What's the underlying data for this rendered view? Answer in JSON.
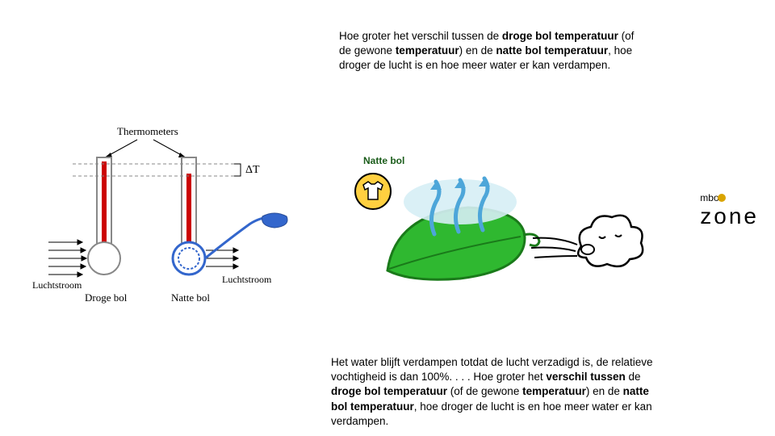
{
  "top_paragraph": {
    "parts": [
      {
        "t": "Hoe groter het verschil tussen de ",
        "b": false
      },
      {
        "t": "droge bol temperatuur",
        "b": true
      },
      {
        "t": " (of de gewone ",
        "b": false
      },
      {
        "t": "temperatuur",
        "b": true
      },
      {
        "t": ") en de ",
        "b": false
      },
      {
        "t": "natte bol temperatuur",
        "b": true
      },
      {
        "t": ", hoe droger de lucht is en hoe meer water er kan verdampen.",
        "b": false
      }
    ]
  },
  "bottom_paragraph": {
    "parts": [
      {
        "t": "Het water blijft verdampen totdat de lucht verzadigd is, de relatieve vochtigheid is dan 100%. . . . Hoe groter het ",
        "b": false
      },
      {
        "t": "verschil tussen",
        "b": true
      },
      {
        "t": " de ",
        "b": false
      },
      {
        "t": "droge bol temperatuur",
        "b": true
      },
      {
        "t": " (of de gewone ",
        "b": false
      },
      {
        "t": "temperatuur",
        "b": true
      },
      {
        "t": ") en de ",
        "b": false
      },
      {
        "t": "natte bol temperatuur",
        "b": true
      },
      {
        "t": ", hoe droger de lucht is en hoe meer water er kan verdampen.",
        "b": false
      }
    ]
  },
  "natte_bol_label": "Natte bol",
  "logo_small": "mbo",
  "logo_large": "zone",
  "thermo_diagram": {
    "label_thermometers": "Thermometers",
    "label_deltaT": "ΔT",
    "label_luchtstroom": "Luchtstroom",
    "label_droge": "Droge bol",
    "label_natte": "Natte bol",
    "colors": {
      "red": "#cc0000",
      "blue": "#3366cc",
      "gray": "#888888",
      "black": "#000000"
    }
  },
  "leaf_diagram": {
    "colors": {
      "leaf_fill": "#2fb830",
      "leaf_stroke": "#1a7a1a",
      "arrow": "#4da6d9",
      "yellow": "#ffd040",
      "cloud_outline": "#000000",
      "wind_line": "#000000"
    }
  }
}
